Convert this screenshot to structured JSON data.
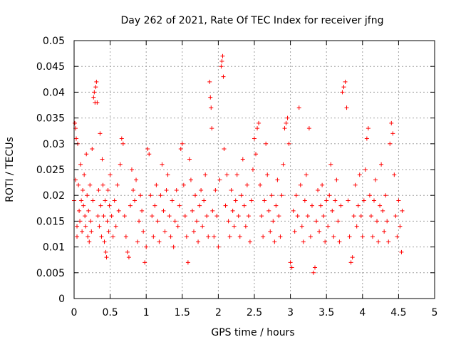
{
  "chart_data": {
    "type": "scatter",
    "title": "Day 262 of 2021, Rate Of TEC Index for receiver jfng",
    "xlabel": "GPS time / hours",
    "ylabel": "ROTI / TECUs",
    "xlim": [
      0,
      5
    ],
    "ylim": [
      0,
      0.05
    ],
    "x_ticks": [
      0,
      0.5,
      1,
      1.5,
      2,
      2.5,
      3,
      3.5,
      4,
      4.5,
      5
    ],
    "x_tick_labels": [
      "0",
      "0.5",
      "1",
      "1.5",
      "2",
      "2.5",
      "3",
      "3.5",
      "4",
      "4.5",
      "5"
    ],
    "y_ticks": [
      0,
      0.005,
      0.01,
      0.015,
      0.02,
      0.025,
      0.03,
      0.035,
      0.04,
      0.045,
      0.05
    ],
    "y_tick_labels": [
      "0",
      "0.005",
      "0.01",
      "0.015",
      "0.02",
      "0.025",
      "0.03",
      "0.035",
      "0.04",
      "0.045",
      "0.05"
    ],
    "grid": true,
    "marker": "+",
    "color": "#ff0000",
    "series": [
      {
        "name": "ROTI",
        "points": [
          [
            0.0,
            0.019
          ],
          [
            0.01,
            0.034
          ],
          [
            0.02,
            0.033
          ],
          [
            0.02,
            0.023
          ],
          [
            0.03,
            0.031
          ],
          [
            0.04,
            0.014
          ],
          [
            0.04,
            0.012
          ],
          [
            0.05,
            0.03
          ],
          [
            0.06,
            0.022
          ],
          [
            0.07,
            0.017
          ],
          [
            0.08,
            0.015
          ],
          [
            0.09,
            0.026
          ],
          [
            0.1,
            0.019
          ],
          [
            0.11,
            0.013
          ],
          [
            0.12,
            0.021
          ],
          [
            0.13,
            0.018
          ],
          [
            0.14,
            0.024
          ],
          [
            0.15,
            0.016
          ],
          [
            0.16,
            0.014
          ],
          [
            0.17,
            0.028
          ],
          [
            0.18,
            0.02
          ],
          [
            0.19,
            0.012
          ],
          [
            0.2,
            0.017
          ],
          [
            0.21,
            0.011
          ],
          [
            0.22,
            0.022
          ],
          [
            0.23,
            0.015
          ],
          [
            0.24,
            0.013
          ],
          [
            0.25,
            0.029
          ],
          [
            0.26,
            0.019
          ],
          [
            0.27,
            0.039
          ],
          [
            0.28,
            0.04
          ],
          [
            0.29,
            0.038
          ],
          [
            0.3,
            0.041
          ],
          [
            0.31,
            0.042
          ],
          [
            0.32,
            0.038
          ],
          [
            0.33,
            0.016
          ],
          [
            0.34,
            0.021
          ],
          [
            0.35,
            0.014
          ],
          [
            0.36,
            0.032
          ],
          [
            0.37,
            0.018
          ],
          [
            0.38,
            0.012
          ],
          [
            0.39,
            0.027
          ],
          [
            0.4,
            0.022
          ],
          [
            0.41,
            0.016
          ],
          [
            0.42,
            0.011
          ],
          [
            0.43,
            0.019
          ],
          [
            0.44,
            0.009
          ],
          [
            0.45,
            0.008
          ],
          [
            0.46,
            0.015
          ],
          [
            0.47,
            0.021
          ],
          [
            0.48,
            0.013
          ],
          [
            0.49,
            0.018
          ],
          [
            0.5,
            0.024
          ],
          [
            0.52,
            0.016
          ],
          [
            0.54,
            0.012
          ],
          [
            0.56,
            0.019
          ],
          [
            0.58,
            0.014
          ],
          [
            0.6,
            0.022
          ],
          [
            0.62,
            0.017
          ],
          [
            0.64,
            0.026
          ],
          [
            0.66,
            0.031
          ],
          [
            0.68,
            0.03
          ],
          [
            0.7,
            0.016
          ],
          [
            0.72,
            0.012
          ],
          [
            0.74,
            0.009
          ],
          [
            0.76,
            0.008
          ],
          [
            0.78,
            0.018
          ],
          [
            0.8,
            0.025
          ],
          [
            0.82,
            0.021
          ],
          [
            0.84,
            0.019
          ],
          [
            0.86,
            0.023
          ],
          [
            0.88,
            0.011
          ],
          [
            0.9,
            0.015
          ],
          [
            0.92,
            0.02
          ],
          [
            0.94,
            0.017
          ],
          [
            0.96,
            0.013
          ],
          [
            0.98,
            0.007
          ],
          [
            1.0,
            0.01
          ],
          [
            1.02,
            0.029
          ],
          [
            1.04,
            0.028
          ],
          [
            1.06,
            0.02
          ],
          [
            1.08,
            0.016
          ],
          [
            1.1,
            0.012
          ],
          [
            1.12,
            0.018
          ],
          [
            1.14,
            0.022
          ],
          [
            1.16,
            0.015
          ],
          [
            1.18,
            0.011
          ],
          [
            1.2,
            0.02
          ],
          [
            1.22,
            0.026
          ],
          [
            1.24,
            0.017
          ],
          [
            1.26,
            0.013
          ],
          [
            1.28,
            0.021
          ],
          [
            1.3,
            0.024
          ],
          [
            1.32,
            0.016
          ],
          [
            1.34,
            0.012
          ],
          [
            1.36,
            0.019
          ],
          [
            1.38,
            0.01
          ],
          [
            1.4,
            0.015
          ],
          [
            1.42,
            0.021
          ],
          [
            1.44,
            0.014
          ],
          [
            1.46,
            0.018
          ],
          [
            1.48,
            0.029
          ],
          [
            1.5,
            0.03
          ],
          [
            1.52,
            0.022
          ],
          [
            1.54,
            0.016
          ],
          [
            1.56,
            0.012
          ],
          [
            1.58,
            0.007
          ],
          [
            1.6,
            0.027
          ],
          [
            1.62,
            0.023
          ],
          [
            1.64,
            0.017
          ],
          [
            1.66,
            0.013
          ],
          [
            1.68,
            0.02
          ],
          [
            1.7,
            0.015
          ],
          [
            1.72,
            0.011
          ],
          [
            1.74,
            0.018
          ],
          [
            1.76,
            0.021
          ],
          [
            1.78,
            0.014
          ],
          [
            1.8,
            0.019
          ],
          [
            1.82,
            0.024
          ],
          [
            1.84,
            0.016
          ],
          [
            1.86,
            0.012
          ],
          [
            1.88,
            0.042
          ],
          [
            1.89,
            0.039
          ],
          [
            1.9,
            0.037
          ],
          [
            1.91,
            0.033
          ],
          [
            1.92,
            0.017
          ],
          [
            1.94,
            0.012
          ],
          [
            1.96,
            0.021
          ],
          [
            1.98,
            0.016
          ],
          [
            2.0,
            0.01
          ],
          [
            2.02,
            0.023
          ],
          [
            2.04,
            0.045
          ],
          [
            2.05,
            0.046
          ],
          [
            2.06,
            0.047
          ],
          [
            2.07,
            0.043
          ],
          [
            2.08,
            0.029
          ],
          [
            2.1,
            0.018
          ],
          [
            2.12,
            0.024
          ],
          [
            2.14,
            0.015
          ],
          [
            2.16,
            0.012
          ],
          [
            2.18,
            0.021
          ],
          [
            2.2,
            0.017
          ],
          [
            2.22,
            0.014
          ],
          [
            2.24,
            0.019
          ],
          [
            2.26,
            0.024
          ],
          [
            2.28,
            0.016
          ],
          [
            2.3,
            0.012
          ],
          [
            2.32,
            0.02
          ],
          [
            2.34,
            0.027
          ],
          [
            2.36,
            0.018
          ],
          [
            2.38,
            0.014
          ],
          [
            2.4,
            0.022
          ],
          [
            2.42,
            0.016
          ],
          [
            2.44,
            0.011
          ],
          [
            2.46,
            0.019
          ],
          [
            2.48,
            0.025
          ],
          [
            2.5,
            0.031
          ],
          [
            2.52,
            0.028
          ],
          [
            2.54,
            0.033
          ],
          [
            2.56,
            0.034
          ],
          [
            2.58,
            0.022
          ],
          [
            2.6,
            0.016
          ],
          [
            2.62,
            0.012
          ],
          [
            2.64,
            0.019
          ],
          [
            2.66,
            0.03
          ],
          [
            2.68,
            0.024
          ],
          [
            2.7,
            0.017
          ],
          [
            2.72,
            0.013
          ],
          [
            2.74,
            0.02
          ],
          [
            2.76,
            0.015
          ],
          [
            2.78,
            0.011
          ],
          [
            2.8,
            0.018
          ],
          [
            2.82,
            0.023
          ],
          [
            2.84,
            0.016
          ],
          [
            2.86,
            0.012
          ],
          [
            2.88,
            0.02
          ],
          [
            2.9,
            0.026
          ],
          [
            2.92,
            0.033
          ],
          [
            2.94,
            0.034
          ],
          [
            2.96,
            0.035
          ],
          [
            2.98,
            0.03
          ],
          [
            3.0,
            0.007
          ],
          [
            3.02,
            0.006
          ],
          [
            3.04,
            0.017
          ],
          [
            3.06,
            0.013
          ],
          [
            3.08,
            0.02
          ],
          [
            3.1,
            0.016
          ],
          [
            3.12,
            0.037
          ],
          [
            3.14,
            0.022
          ],
          [
            3.16,
            0.014
          ],
          [
            3.18,
            0.011
          ],
          [
            3.2,
            0.019
          ],
          [
            3.22,
            0.024
          ],
          [
            3.24,
            0.016
          ],
          [
            3.26,
            0.033
          ],
          [
            3.28,
            0.012
          ],
          [
            3.3,
            0.018
          ],
          [
            3.32,
            0.005
          ],
          [
            3.34,
            0.006
          ],
          [
            3.36,
            0.015
          ],
          [
            3.38,
            0.021
          ],
          [
            3.4,
            0.013
          ],
          [
            3.42,
            0.018
          ],
          [
            3.44,
            0.022
          ],
          [
            3.46,
            0.016
          ],
          [
            3.48,
            0.011
          ],
          [
            3.5,
            0.019
          ],
          [
            3.52,
            0.014
          ],
          [
            3.54,
            0.02
          ],
          [
            3.56,
            0.026
          ],
          [
            3.58,
            0.017
          ],
          [
            3.6,
            0.012
          ],
          [
            3.62,
            0.019
          ],
          [
            3.64,
            0.023
          ],
          [
            3.66,
            0.015
          ],
          [
            3.68,
            0.011
          ],
          [
            3.7,
            0.018
          ],
          [
            3.72,
            0.04
          ],
          [
            3.74,
            0.041
          ],
          [
            3.76,
            0.042
          ],
          [
            3.78,
            0.037
          ],
          [
            3.8,
            0.019
          ],
          [
            3.82,
            0.012
          ],
          [
            3.84,
            0.007
          ],
          [
            3.86,
            0.008
          ],
          [
            3.88,
            0.016
          ],
          [
            3.9,
            0.022
          ],
          [
            3.92,
            0.014
          ],
          [
            3.94,
            0.018
          ],
          [
            3.96,
            0.024
          ],
          [
            3.98,
            0.016
          ],
          [
            4.0,
            0.012
          ],
          [
            4.02,
            0.019
          ],
          [
            4.04,
            0.025
          ],
          [
            4.06,
            0.031
          ],
          [
            4.08,
            0.033
          ],
          [
            4.1,
            0.02
          ],
          [
            4.12,
            0.016
          ],
          [
            4.14,
            0.012
          ],
          [
            4.16,
            0.019
          ],
          [
            4.18,
            0.023
          ],
          [
            4.2,
            0.015
          ],
          [
            4.22,
            0.011
          ],
          [
            4.24,
            0.018
          ],
          [
            4.26,
            0.026
          ],
          [
            4.28,
            0.017
          ],
          [
            4.3,
            0.013
          ],
          [
            4.32,
            0.02
          ],
          [
            4.34,
            0.015
          ],
          [
            4.36,
            0.011
          ],
          [
            4.38,
            0.03
          ],
          [
            4.4,
            0.034
          ],
          [
            4.42,
            0.032
          ],
          [
            4.44,
            0.024
          ],
          [
            4.46,
            0.016
          ],
          [
            4.48,
            0.012
          ],
          [
            4.5,
            0.019
          ],
          [
            4.52,
            0.014
          ],
          [
            4.54,
            0.009
          ],
          [
            4.55,
            0.017
          ]
        ]
      }
    ]
  }
}
